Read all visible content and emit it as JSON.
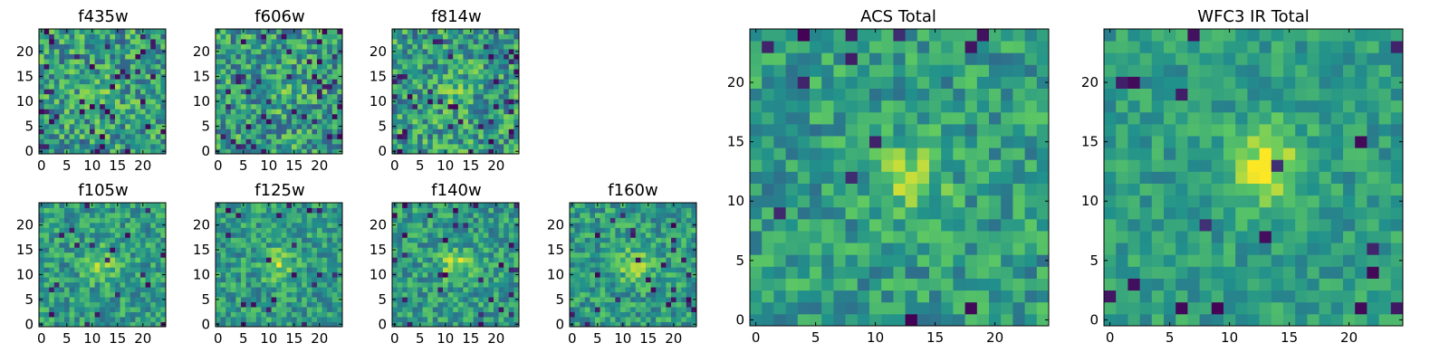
{
  "figure": {
    "colormap": [
      "#440154",
      "#3b528b",
      "#21918c",
      "#5ec962",
      "#fde725"
    ]
  },
  "chart_data": [
    {
      "id": "f435w",
      "type": "heatmap",
      "title": "f435w",
      "xlim": [
        -0.5,
        24.5
      ],
      "ylim": [
        -0.5,
        24.5
      ],
      "xticks": [
        0,
        5,
        10,
        15,
        20
      ],
      "yticks": [
        0,
        5,
        10,
        15,
        20
      ],
      "grid_size": [
        25,
        25
      ],
      "seed": 11,
      "peak": [
        12,
        12
      ],
      "peak_strength": 0.12,
      "noise": 0.55,
      "dark_fraction": 0.06
    },
    {
      "id": "f606w",
      "type": "heatmap",
      "title": "f606w",
      "xlim": [
        -0.5,
        24.5
      ],
      "ylim": [
        -0.5,
        24.5
      ],
      "xticks": [
        0,
        5,
        10,
        15,
        20
      ],
      "yticks": [
        0,
        5,
        10,
        15,
        20
      ],
      "grid_size": [
        25,
        25
      ],
      "seed": 23,
      "peak": [
        12,
        12
      ],
      "peak_strength": 0.12,
      "noise": 0.55,
      "dark_fraction": 0.06
    },
    {
      "id": "f814w",
      "type": "heatmap",
      "title": "f814w",
      "xlim": [
        -0.5,
        24.5
      ],
      "ylim": [
        -0.5,
        24.5
      ],
      "xticks": [
        0,
        5,
        10,
        15,
        20
      ],
      "yticks": [
        0,
        5,
        10,
        15,
        20
      ],
      "grid_size": [
        25,
        25
      ],
      "seed": 37,
      "peak": [
        12,
        12
      ],
      "peak_strength": 0.14,
      "noise": 0.55,
      "dark_fraction": 0.06
    },
    {
      "id": "f105w",
      "type": "heatmap",
      "title": "f105w",
      "xlim": [
        -0.5,
        24.5
      ],
      "ylim": [
        -0.5,
        24.5
      ],
      "xticks": [
        0,
        5,
        10,
        15,
        20
      ],
      "yticks": [
        0,
        5,
        10,
        15,
        20
      ],
      "grid_size": [
        25,
        25
      ],
      "seed": 41,
      "peak": [
        12,
        12
      ],
      "peak_strength": 0.25,
      "noise": 0.4,
      "dark_fraction": 0.04
    },
    {
      "id": "f125w",
      "type": "heatmap",
      "title": "f125w",
      "xlim": [
        -0.5,
        24.5
      ],
      "ylim": [
        -0.5,
        24.5
      ],
      "xticks": [
        0,
        5,
        10,
        15,
        20
      ],
      "yticks": [
        0,
        5,
        10,
        15,
        20
      ],
      "grid_size": [
        25,
        25
      ],
      "seed": 53,
      "peak": [
        12,
        12
      ],
      "peak_strength": 0.25,
      "noise": 0.4,
      "dark_fraction": 0.04
    },
    {
      "id": "f140w",
      "type": "heatmap",
      "title": "f140w",
      "xlim": [
        -0.5,
        24.5
      ],
      "ylim": [
        -0.5,
        24.5
      ],
      "xticks": [
        0,
        5,
        10,
        15,
        20
      ],
      "yticks": [
        0,
        5,
        10,
        15,
        20
      ],
      "grid_size": [
        25,
        25
      ],
      "seed": 67,
      "peak": [
        12,
        12
      ],
      "peak_strength": 0.28,
      "noise": 0.4,
      "dark_fraction": 0.04
    },
    {
      "id": "f160w",
      "type": "heatmap",
      "title": "f160w",
      "xlim": [
        -0.5,
        24.5
      ],
      "ylim": [
        -0.5,
        24.5
      ],
      "xticks": [
        0,
        5,
        10,
        15,
        20
      ],
      "yticks": [
        0,
        5,
        10,
        15,
        20
      ],
      "grid_size": [
        25,
        25
      ],
      "seed": 79,
      "peak": [
        12,
        12
      ],
      "peak_strength": 0.28,
      "noise": 0.4,
      "dark_fraction": 0.04
    },
    {
      "id": "acs_total",
      "type": "heatmap",
      "title": "ACS Total",
      "xlim": [
        -0.5,
        24.5
      ],
      "ylim": [
        -0.5,
        24.5
      ],
      "xticks": [
        0,
        5,
        10,
        15,
        20
      ],
      "yticks": [
        0,
        5,
        10,
        15,
        20
      ],
      "grid_size": [
        25,
        25
      ],
      "seed": 97,
      "peak": [
        13,
        12
      ],
      "peak_strength": 0.25,
      "noise": 0.38,
      "dark_fraction": 0.03
    },
    {
      "id": "wfc3_ir_total",
      "type": "heatmap",
      "title": "WFC3 IR Total",
      "xlim": [
        -0.5,
        24.5
      ],
      "ylim": [
        -0.5,
        24.5
      ],
      "xticks": [
        0,
        5,
        10,
        15,
        20
      ],
      "yticks": [
        0,
        5,
        10,
        15,
        20
      ],
      "grid_size": [
        25,
        25
      ],
      "seed": 113,
      "peak": [
        13,
        13
      ],
      "peak_strength": 0.4,
      "noise": 0.28,
      "dark_fraction": 0.025
    }
  ]
}
